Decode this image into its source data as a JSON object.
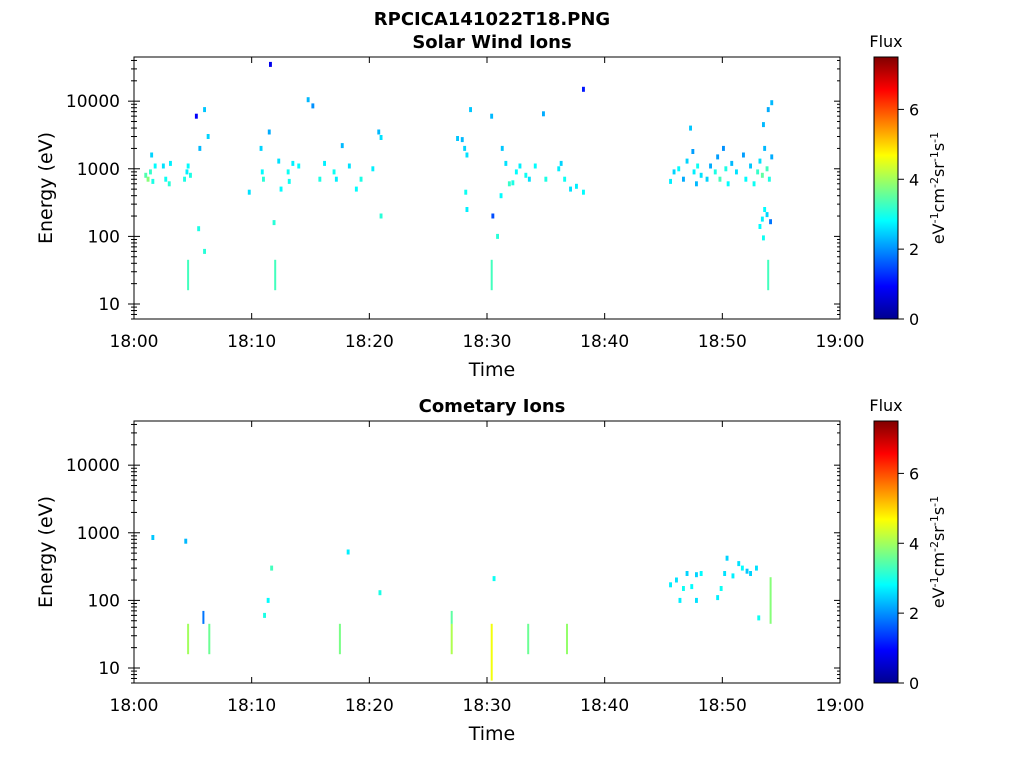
{
  "title": "RPCICA141022T18.PNG",
  "colorbar": {
    "title": "Flux",
    "units_html": "eV<tspan baseline-shift=\"super\" font-size=\"11\">-1</tspan>cm<tspan baseline-shift=\"super\" font-size=\"11\">-2</tspan>sr<tspan baseline-shift=\"super\" font-size=\"11\">-1</tspan>s<tspan baseline-shift=\"super\" font-size=\"11\">-1</tspan>",
    "units": "eV-1cm-2sr-1s-1",
    "range": [
      0,
      7.5
    ],
    "ticks": [
      "0",
      "2",
      "4",
      "6"
    ],
    "tick_values": [
      0,
      2,
      4,
      6
    ],
    "colormap": "jet"
  },
  "chart_data": [
    {
      "type": "heatmap",
      "title": "Solar Wind Ions",
      "xlabel": "Time",
      "ylabel": "Energy (eV)",
      "x_ticks": [
        "18:00",
        "18:10",
        "18:20",
        "18:30",
        "18:40",
        "18:50",
        "19:00"
      ],
      "x_tick_minutes": [
        0,
        10,
        20,
        30,
        40,
        50,
        60
      ],
      "xlim_minutes_after_18_00": [
        0,
        60
      ],
      "y_scale": "log",
      "ylim": [
        6,
        45000
      ],
      "y_ticks": [
        "10",
        "100",
        "1000",
        "10000"
      ],
      "y_tick_values": [
        10,
        100,
        1000,
        10000
      ],
      "cells": [
        [
          1.0,
          800,
          3.4
        ],
        [
          1.2,
          700,
          3.8
        ],
        [
          1.4,
          900,
          3.2
        ],
        [
          1.6,
          650,
          3.0
        ],
        [
          1.8,
          1100,
          2.8
        ],
        [
          1.5,
          1600,
          2.5
        ],
        [
          2.5,
          1100,
          2.6
        ],
        [
          2.7,
          700,
          2.9
        ],
        [
          3.0,
          600,
          3.1
        ],
        [
          3.1,
          1200,
          2.7
        ],
        [
          4.3,
          700,
          3.0
        ],
        [
          4.5,
          900,
          2.7
        ],
        [
          4.6,
          1100,
          2.8
        ],
        [
          4.8,
          800,
          3.0
        ],
        [
          5.3,
          6000,
          0.9
        ],
        [
          5.6,
          2000,
          2.3
        ],
        [
          6.0,
          7500,
          2.4
        ],
        [
          6.3,
          3000,
          2.5
        ],
        [
          5.5,
          130,
          3.0
        ],
        [
          6.0,
          60,
          3.1
        ],
        [
          9.8,
          450,
          2.6
        ],
        [
          10.8,
          2000,
          2.5
        ],
        [
          10.9,
          900,
          2.8
        ],
        [
          11.0,
          700,
          3.1
        ],
        [
          11.5,
          3500,
          2.2
        ],
        [
          11.6,
          35000,
          0.8
        ],
        [
          11.9,
          160,
          3.1
        ],
        [
          12.3,
          1300,
          2.6
        ],
        [
          12.5,
          500,
          2.8
        ],
        [
          13.1,
          900,
          2.9
        ],
        [
          13.2,
          650,
          2.9
        ],
        [
          13.5,
          1200,
          2.7
        ],
        [
          14.0,
          1100,
          2.8
        ],
        [
          14.8,
          10500,
          2.3
        ],
        [
          15.2,
          8500,
          2.0
        ],
        [
          15.8,
          700,
          3.0
        ],
        [
          16.2,
          1200,
          2.7
        ],
        [
          17.0,
          900,
          2.9
        ],
        [
          17.2,
          700,
          2.7
        ],
        [
          17.7,
          2200,
          2.3
        ],
        [
          18.3,
          1100,
          2.6
        ],
        [
          18.9,
          500,
          2.8
        ],
        [
          19.3,
          700,
          3.0
        ],
        [
          20.3,
          1000,
          2.7
        ],
        [
          20.8,
          3500,
          2.3
        ],
        [
          21.0,
          2900,
          2.6
        ],
        [
          21.0,
          200,
          3.1
        ],
        [
          27.5,
          2800,
          2.4
        ],
        [
          27.9,
          2700,
          2.3
        ],
        [
          28.1,
          2000,
          2.5
        ],
        [
          28.3,
          1600,
          2.6
        ],
        [
          28.2,
          450,
          2.9
        ],
        [
          28.3,
          250,
          2.7
        ],
        [
          28.6,
          7500,
          2.4
        ],
        [
          30.4,
          6000,
          2.3
        ],
        [
          30.5,
          200,
          1.5
        ],
        [
          30.9,
          100,
          3.1
        ],
        [
          31.3,
          2000,
          2.4
        ],
        [
          31.6,
          1200,
          2.6
        ],
        [
          31.2,
          400,
          2.8
        ],
        [
          31.9,
          600,
          3.2
        ],
        [
          32.2,
          620,
          3.0
        ],
        [
          32.5,
          900,
          2.8
        ],
        [
          32.8,
          1100,
          2.7
        ],
        [
          33.3,
          800,
          2.9
        ],
        [
          33.6,
          700,
          2.6
        ],
        [
          34.1,
          1100,
          2.8
        ],
        [
          34.8,
          6500,
          2.2
        ],
        [
          35.0,
          700,
          3.0
        ],
        [
          36.1,
          1000,
          2.7
        ],
        [
          36.3,
          1200,
          2.5
        ],
        [
          36.6,
          700,
          2.9
        ],
        [
          37.1,
          500,
          2.6
        ],
        [
          37.6,
          550,
          2.7
        ],
        [
          38.2,
          450,
          2.8
        ],
        [
          38.2,
          15000,
          1.1
        ],
        [
          45.6,
          650,
          2.7
        ],
        [
          45.9,
          900,
          2.5
        ],
        [
          46.3,
          1000,
          2.8
        ],
        [
          46.7,
          700,
          2.2
        ],
        [
          47.0,
          1300,
          2.5
        ],
        [
          47.3,
          4000,
          2.4
        ],
        [
          47.5,
          1800,
          2.1
        ],
        [
          47.6,
          900,
          2.7
        ],
        [
          47.8,
          600,
          2.3
        ],
        [
          47.9,
          1100,
          2.9
        ],
        [
          48.2,
          800,
          2.6
        ],
        [
          48.7,
          700,
          2.5
        ],
        [
          49.0,
          1100,
          2.2
        ],
        [
          49.4,
          900,
          3.0
        ],
        [
          49.6,
          1500,
          2.1
        ],
        [
          49.8,
          700,
          3.3
        ],
        [
          50.1,
          2000,
          2.0
        ],
        [
          50.3,
          1000,
          3.0
        ],
        [
          50.5,
          600,
          2.8
        ],
        [
          50.8,
          1200,
          2.3
        ],
        [
          51.2,
          900,
          2.6
        ],
        [
          51.8,
          1600,
          2.1
        ],
        [
          52.0,
          700,
          2.8
        ],
        [
          52.4,
          1100,
          2.4
        ],
        [
          52.7,
          600,
          2.9
        ],
        [
          53.0,
          900,
          3.2
        ],
        [
          53.2,
          1300,
          2.6
        ],
        [
          53.4,
          800,
          3.5
        ],
        [
          53.6,
          2000,
          2.3
        ],
        [
          53.8,
          1000,
          3.3
        ],
        [
          54.0,
          700,
          3.0
        ],
        [
          54.2,
          1500,
          2.2
        ],
        [
          53.5,
          4500,
          2.3
        ],
        [
          53.9,
          7500,
          2.2
        ],
        [
          54.2,
          9500,
          2.3
        ],
        [
          53.2,
          140,
          2.8
        ],
        [
          53.4,
          180,
          2.7
        ],
        [
          53.6,
          250,
          2.8
        ],
        [
          53.8,
          210,
          2.5
        ],
        [
          54.1,
          165,
          1.8
        ],
        [
          53.5,
          95,
          2.9
        ]
      ],
      "lines": [
        [
          4.6,
          16,
          45,
          3.3
        ],
        [
          12.0,
          16,
          45,
          3.3
        ],
        [
          30.4,
          16,
          45,
          3.3
        ],
        [
          53.9,
          16,
          45,
          3.3
        ]
      ]
    },
    {
      "type": "heatmap",
      "title": "Cometary Ions",
      "xlabel": "Time",
      "ylabel": "Energy (eV)",
      "x_ticks": [
        "18:00",
        "18:10",
        "18:20",
        "18:30",
        "18:40",
        "18:50",
        "19:00"
      ],
      "x_tick_minutes": [
        0,
        10,
        20,
        30,
        40,
        50,
        60
      ],
      "xlim_minutes_after_18_00": [
        0,
        60
      ],
      "y_scale": "log",
      "ylim": [
        6,
        45000
      ],
      "y_ticks": [
        "10",
        "100",
        "1000",
        "10000"
      ],
      "y_tick_values": [
        10,
        100,
        1000,
        10000
      ],
      "cells": [
        [
          1.6,
          850,
          2.4
        ],
        [
          4.4,
          750,
          2.3
        ],
        [
          11.1,
          60,
          3.0
        ],
        [
          11.4,
          100,
          2.8
        ],
        [
          11.7,
          300,
          3.3
        ],
        [
          18.2,
          520,
          2.7
        ],
        [
          20.9,
          130,
          3.0
        ],
        [
          30.6,
          210,
          2.9
        ],
        [
          45.6,
          170,
          2.7
        ],
        [
          46.1,
          200,
          2.6
        ],
        [
          46.4,
          100,
          2.7
        ],
        [
          46.7,
          150,
          2.9
        ],
        [
          47.0,
          250,
          2.5
        ],
        [
          47.4,
          160,
          2.8
        ],
        [
          47.8,
          100,
          2.6
        ],
        [
          47.8,
          240,
          2.5
        ],
        [
          48.2,
          250,
          2.8
        ],
        [
          49.6,
          110,
          2.7
        ],
        [
          49.9,
          150,
          2.9
        ],
        [
          50.2,
          250,
          2.6
        ],
        [
          50.4,
          420,
          2.5
        ],
        [
          50.9,
          230,
          2.7
        ],
        [
          51.4,
          350,
          2.6
        ],
        [
          51.7,
          300,
          2.8
        ],
        [
          52.1,
          270,
          2.4
        ],
        [
          52.4,
          250,
          2.5
        ],
        [
          52.9,
          300,
          2.6
        ],
        [
          53.1,
          55,
          2.9
        ]
      ],
      "lines": [
        [
          5.9,
          45,
          70,
          1.8
        ],
        [
          4.6,
          16,
          45,
          4.0
        ],
        [
          6.4,
          16,
          45,
          3.6
        ],
        [
          17.5,
          16,
          45,
          3.7
        ],
        [
          27.0,
          16,
          45,
          4.1
        ],
        [
          27.0,
          45,
          70,
          3.5
        ],
        [
          30.4,
          6.5,
          45,
          4.6
        ],
        [
          33.5,
          16,
          45,
          3.6
        ],
        [
          36.8,
          16,
          45,
          3.9
        ],
        [
          54.1,
          45,
          220,
          3.8
        ]
      ]
    }
  ]
}
